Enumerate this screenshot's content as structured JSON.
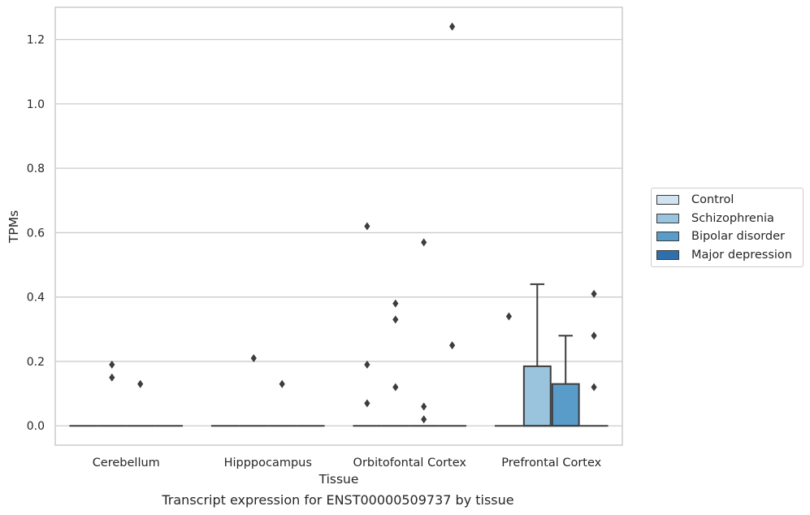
{
  "caption": "Transcript expression for ENST00000509737 by tissue",
  "chart_data": {
    "type": "box",
    "xlabel": "Tissue",
    "ylabel": "TPMs",
    "ylim": [
      -0.06,
      1.3
    ],
    "yticks": [
      0.0,
      0.2,
      0.4,
      0.6,
      0.8,
      1.0,
      1.2
    ],
    "ytick_labels": [
      "0.0",
      "0.2",
      "0.4",
      "0.6",
      "0.8",
      "1.0",
      "1.2"
    ],
    "grid": "horizontal",
    "legend_position": "right",
    "categories": [
      "Cerebellum",
      "Hipppocampus",
      "Orbitofontal Cortex",
      "Prefrontal Cortex"
    ],
    "series": [
      {
        "name": "Control",
        "color": "#d1e2f2",
        "boxes": [
          {
            "q1": 0,
            "median": 0,
            "q3": 0,
            "whislo": 0,
            "whishi": 0,
            "outliers": []
          },
          {
            "q1": 0,
            "median": 0,
            "q3": 0,
            "whislo": 0,
            "whishi": 0,
            "outliers": []
          },
          {
            "q1": 0,
            "median": 0,
            "q3": 0,
            "whislo": 0,
            "whishi": 0,
            "outliers": [
              0.62,
              0.19,
              0.07
            ]
          },
          {
            "q1": 0,
            "median": 0,
            "q3": 0,
            "whislo": 0,
            "whishi": 0,
            "outliers": [
              0.34
            ]
          }
        ]
      },
      {
        "name": "Schizophrenia",
        "color": "#9ac3de",
        "boxes": [
          {
            "q1": 0,
            "median": 0,
            "q3": 0,
            "whislo": 0,
            "whishi": 0,
            "outliers": [
              0.19,
              0.15
            ]
          },
          {
            "q1": 0,
            "median": 0,
            "q3": 0,
            "whislo": 0,
            "whishi": 0,
            "outliers": [
              0.21
            ]
          },
          {
            "q1": 0,
            "median": 0,
            "q3": 0,
            "whislo": 0,
            "whishi": 0,
            "outliers": [
              0.38,
              0.33,
              0.12
            ]
          },
          {
            "q1": 0,
            "median": 0,
            "q3": 0.185,
            "whislo": 0,
            "whishi": 0.44,
            "outliers": []
          }
        ]
      },
      {
        "name": "Bipolar disorder",
        "color": "#5a9cc9",
        "boxes": [
          {
            "q1": 0,
            "median": 0,
            "q3": 0,
            "whislo": 0,
            "whishi": 0,
            "outliers": [
              0.13
            ]
          },
          {
            "q1": 0,
            "median": 0,
            "q3": 0,
            "whislo": 0,
            "whishi": 0,
            "outliers": [
              0.13
            ]
          },
          {
            "q1": 0,
            "median": 0,
            "q3": 0,
            "whislo": 0,
            "whishi": 0,
            "outliers": [
              0.57,
              0.06,
              0.02
            ]
          },
          {
            "q1": 0,
            "median": 0,
            "q3": 0.13,
            "whislo": 0,
            "whishi": 0.28,
            "outliers": []
          }
        ]
      },
      {
        "name": "Major depression",
        "color": "#2f6fae",
        "boxes": [
          {
            "q1": 0,
            "median": 0,
            "q3": 0,
            "whislo": 0,
            "whishi": 0,
            "outliers": []
          },
          {
            "q1": 0,
            "median": 0,
            "q3": 0,
            "whislo": 0,
            "whishi": 0,
            "outliers": []
          },
          {
            "q1": 0,
            "median": 0,
            "q3": 0,
            "whislo": 0,
            "whishi": 0,
            "outliers": [
              1.24,
              0.25
            ]
          },
          {
            "q1": 0,
            "median": 0,
            "q3": 0,
            "whislo": 0,
            "whishi": 0,
            "outliers": [
              0.41,
              0.28,
              0.12
            ]
          }
        ]
      }
    ]
  }
}
